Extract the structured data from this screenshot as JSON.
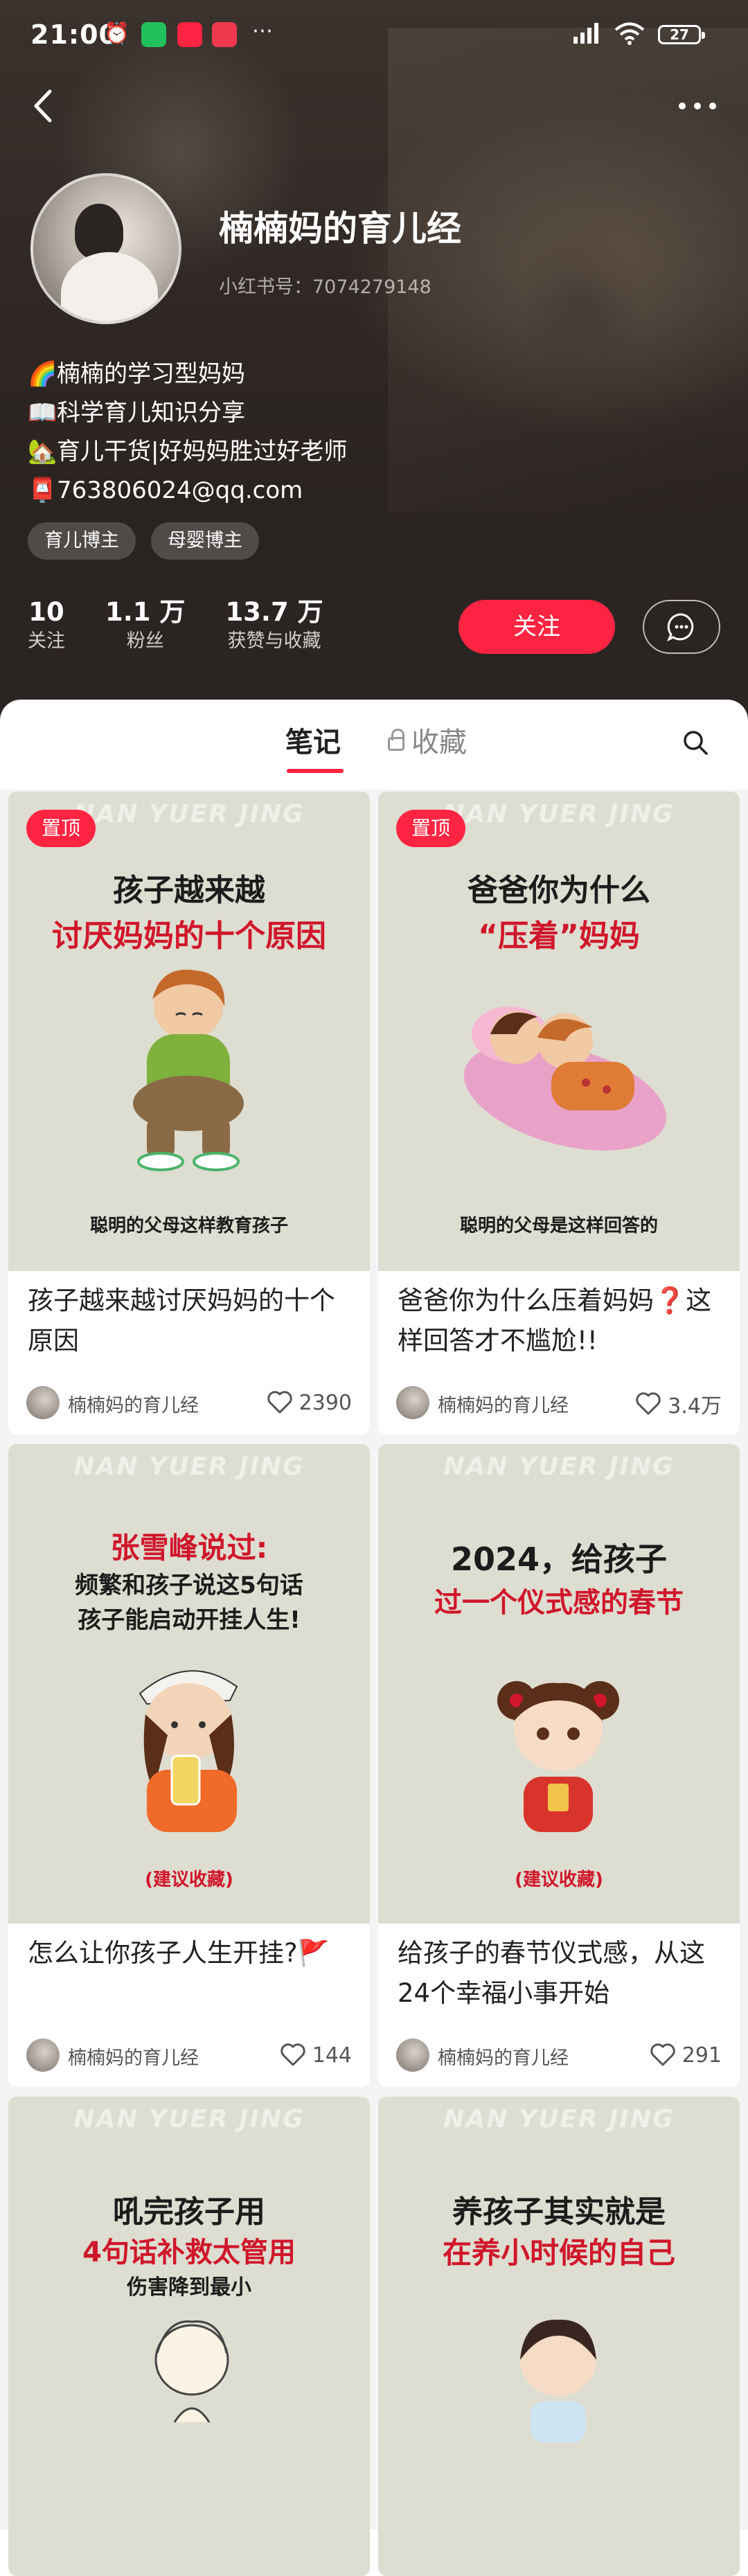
{
  "status_bar": {
    "time": "21:00",
    "battery": "27"
  },
  "profile": {
    "nickname": "楠楠妈的育儿经",
    "user_id": "小红书号：7074279148",
    "bio": [
      {
        "emoji": "🌈",
        "text": "楠楠的学习型妈妈"
      },
      {
        "emoji": "📖",
        "text": "科学育儿知识分享"
      },
      {
        "emoji": "🏡",
        "text": "育儿干货|好妈妈胜过好老师"
      },
      {
        "emoji": "📮",
        "text": "763806024@qq.com"
      }
    ],
    "tags": [
      "育儿博主",
      "母婴博主"
    ],
    "stats": [
      {
        "value": "10",
        "label": "关注"
      },
      {
        "value": "1.1 万",
        "label": "粉丝"
      },
      {
        "value": "13.7 万",
        "label": "获赞与收藏"
      }
    ],
    "follow_label": "关注"
  },
  "tabs": {
    "notes": "笔记",
    "favorites": "收藏"
  },
  "notes": [
    {
      "pinned": "置顶",
      "watermark": "NAN YUER JING",
      "cover_line1": "孩子越来越",
      "cover_line2": "讨厌妈妈的十个原因",
      "cover_footer": "聪明的父母这样教育孩子",
      "title": "孩子越来越讨厌妈妈的十个原因",
      "author": "楠楠妈的育儿经",
      "likes": "2390"
    },
    {
      "pinned": "置顶",
      "watermark": "NAN YUER JING",
      "cover_line1": "爸爸你为什么",
      "cover_line2": "“压着”妈妈",
      "cover_footer": "聪明的父母是这样回答的",
      "title": "爸爸你为什么压着妈妈❓这样回答才不尴尬!!",
      "author": "楠楠妈的育儿经",
      "likes": "3.4万"
    },
    {
      "watermark": "NAN YUER JING",
      "cover_line1": "张雪峰说过:",
      "cover_line2": "频繁和孩子说这5句话",
      "cover_line3": "孩子能启动开挂人生!",
      "cover_footer": "(建议收藏)",
      "title": "怎么让你孩子人生开挂?🚩",
      "author": "楠楠妈的育儿经",
      "likes": "144"
    },
    {
      "watermark": "NAN YUER JING",
      "cover_line1": "2024，给孩子",
      "cover_line2": "过一个仪式感的春节",
      "cover_footer": "(建议收藏)",
      "title": "给孩子的春节仪式感，从这24个幸福小事开始",
      "author": "楠楠妈的育儿经",
      "likes": "291"
    },
    {
      "watermark": "NAN YUER JING",
      "cover_line1": "吼完孩子用",
      "cover_line2": "4句话补救太管用",
      "cover_line3": "伤害降到最小"
    },
    {
      "watermark": "NAN YUER JING",
      "cover_line1": "养孩子其实就是",
      "cover_line2": "在养小时候的自己"
    }
  ],
  "colors": {
    "accent": "#ff2442",
    "cover_bg": "#deddd1",
    "cover_red": "#d0162a"
  }
}
